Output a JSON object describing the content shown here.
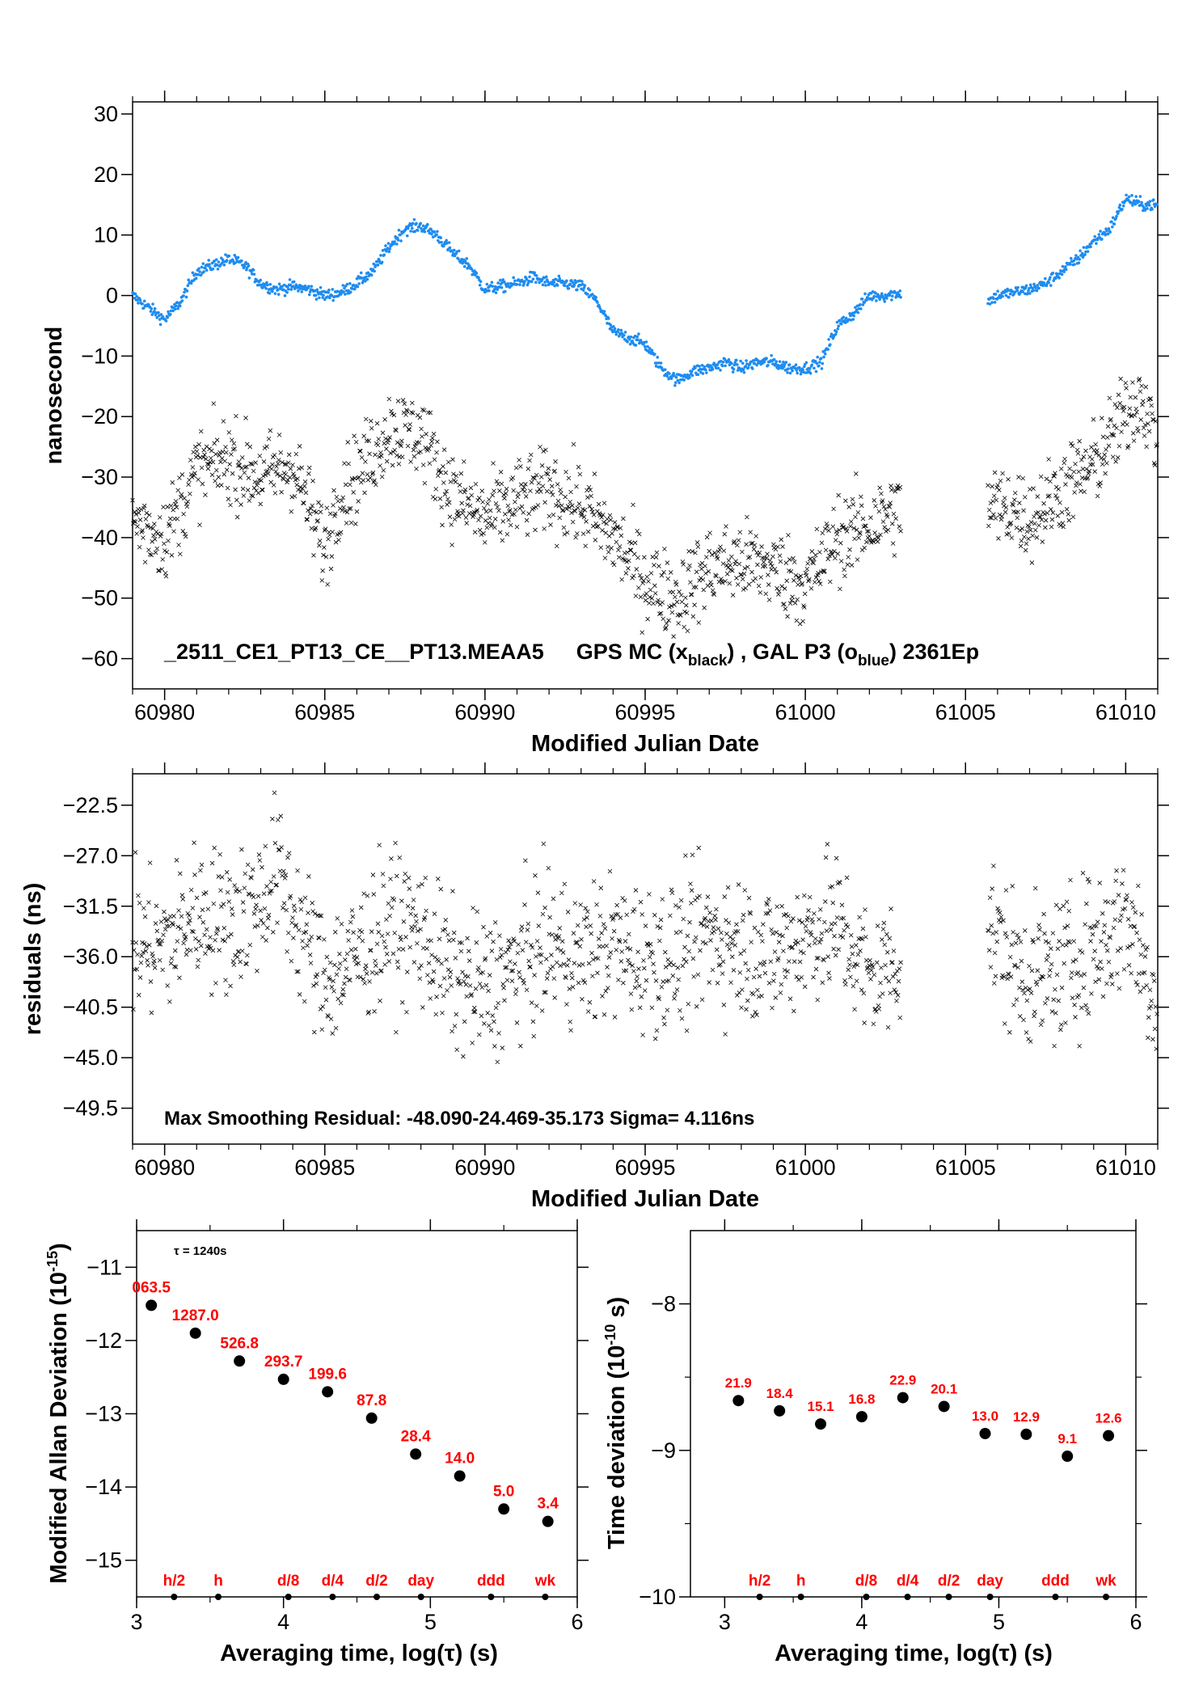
{
  "colors": {
    "blue_series": "#1e8cf0",
    "black_series": "#000000",
    "labels": "#ff0000"
  },
  "chart_data": [
    {
      "type": "scatter",
      "xlabel": "Modified Julian Date",
      "ylabel": "nanosecond",
      "xlim": [
        60979,
        61011
      ],
      "ylim": [
        -65,
        32
      ],
      "xticks": [
        60980,
        60985,
        60990,
        60995,
        61000,
        61005,
        61010
      ],
      "yticks": [
        30,
        20,
        10,
        0,
        -10,
        -20,
        -30,
        -40,
        -50,
        -60
      ],
      "annotation": {
        "station": "_2511_CE1_PT13_CE__PT13.MEAA5",
        "gps": "GPS MC (x",
        "gps_sub": "black",
        "sep": ") ,  GAL P3 (o",
        "gal_sub": "blue",
        "tail": ")  2361Ep"
      },
      "series": [
        {
          "marker": "o",
          "color": "#1e8cf0",
          "trend": [
            [
              60979,
              0
            ],
            [
              60979.5,
              -2
            ],
            [
              60980,
              -4
            ],
            [
              60980.5,
              -1
            ],
            [
              60981,
              4
            ],
            [
              60981.5,
              5
            ],
            [
              60982,
              6
            ],
            [
              60982.5,
              5
            ],
            [
              60983,
              2
            ],
            [
              60983.5,
              1
            ],
            [
              60984,
              1.5
            ],
            [
              60984.5,
              1
            ],
            [
              60985,
              0
            ],
            [
              60985.5,
              0.5
            ],
            [
              60986,
              2
            ],
            [
              60986.5,
              4
            ],
            [
              60987,
              8
            ],
            [
              60987.5,
              11
            ],
            [
              60988,
              11.5
            ],
            [
              60988.5,
              10
            ],
            [
              60989,
              7
            ],
            [
              60989.5,
              5
            ],
            [
              60990,
              1
            ],
            [
              60990.5,
              1.5
            ],
            [
              60991,
              2
            ],
            [
              60991.5,
              3
            ],
            [
              60992,
              2
            ],
            [
              60992.5,
              2
            ],
            [
              60993,
              1.5
            ],
            [
              60993.5,
              -1
            ],
            [
              60994,
              -6
            ],
            [
              60994.5,
              -7
            ],
            [
              60995,
              -8
            ],
            [
              60995.5,
              -12
            ],
            [
              60996,
              -14
            ],
            [
              60996.5,
              -12.5
            ],
            [
              60997,
              -12
            ],
            [
              60997.5,
              -11
            ],
            [
              60998,
              -12
            ],
            [
              60998.5,
              -11
            ],
            [
              60999,
              -11
            ],
            [
              60999.5,
              -12
            ],
            [
              61000,
              -12
            ],
            [
              61000.5,
              -11
            ],
            [
              61001,
              -5
            ],
            [
              61001.5,
              -3
            ],
            [
              61002,
              0
            ],
            [
              61002.5,
              0
            ],
            [
              61003,
              0.5
            ]
          ],
          "trend2": [
            [
              61005.7,
              -1
            ],
            [
              61006,
              0
            ],
            [
              61006.5,
              0.5
            ],
            [
              61007,
              1
            ],
            [
              61007.5,
              2
            ],
            [
              61008,
              4
            ],
            [
              61008.5,
              6
            ],
            [
              61009,
              9
            ],
            [
              61009.5,
              11
            ],
            [
              61010,
              16
            ],
            [
              61010.5,
              15
            ],
            [
              61011,
              15
            ]
          ]
        },
        {
          "marker": "x",
          "color": "#000000",
          "trend": [
            [
              60979,
              -37
            ],
            [
              60980,
              -40
            ],
            [
              60980.5,
              -35
            ],
            [
              60981,
              -29
            ],
            [
              60982,
              -27
            ],
            [
              60983,
              -30
            ],
            [
              60984,
              -28
            ],
            [
              60984.5,
              -35
            ],
            [
              60985,
              -42
            ],
            [
              60985.5,
              -32
            ],
            [
              60986,
              -30
            ],
            [
              60987,
              -22
            ],
            [
              60988,
              -23
            ],
            [
              60989,
              -33
            ],
            [
              60990,
              -37
            ],
            [
              60991,
              -34
            ],
            [
              60992,
              -32
            ],
            [
              60993,
              -35
            ],
            [
              60994,
              -40
            ],
            [
              60995,
              -47
            ],
            [
              60996,
              -50
            ],
            [
              60997,
              -45
            ],
            [
              60998,
              -44
            ],
            [
              60999,
              -45
            ],
            [
              61000,
              -48
            ],
            [
              61001,
              -40
            ],
            [
              61002,
              -38
            ],
            [
              61003,
              -35
            ]
          ],
          "trend2": [
            [
              61005.7,
              -35
            ],
            [
              61006.5,
              -35
            ],
            [
              61007,
              -37
            ],
            [
              61008,
              -32
            ],
            [
              61009,
              -28
            ],
            [
              61010,
              -20
            ],
            [
              61010.5,
              -16
            ],
            [
              61011,
              -25
            ]
          ]
        }
      ]
    },
    {
      "type": "scatter",
      "xlabel": "Modified Julian Date",
      "ylabel": "residuals (ns)",
      "xlim": [
        60979,
        61011
      ],
      "ylim": [
        -52.7,
        -19.7
      ],
      "xticks": [
        60980,
        60985,
        60990,
        60995,
        61000,
        61005,
        61010
      ],
      "yticks": [
        -22.5,
        -27.0,
        -31.5,
        -36.0,
        -40.5,
        -45.0,
        -49.5
      ],
      "ytick_labels": [
        "-22.5",
        "-27.0",
        "-31.5",
        "-36.0",
        "-40.5",
        "-45.0",
        "-49.5"
      ],
      "annotation": "Max Smoothing Residual: -48.090-24.469-35.173  Sigma= 4.116ns",
      "series": [
        {
          "marker": "x",
          "color": "#000000",
          "trend": [
            [
              60979,
              -35
            ],
            [
              60980,
              -35
            ],
            [
              60981,
              -32
            ],
            [
              60982,
              -33
            ],
            [
              60983,
              -31
            ],
            [
              60983.5,
              -28
            ],
            [
              60984,
              -32
            ],
            [
              60985,
              -38
            ],
            [
              60986,
              -36
            ],
            [
              60987,
              -33
            ],
            [
              60988,
              -34
            ],
            [
              60989,
              -38
            ],
            [
              60990,
              -39
            ],
            [
              60991,
              -37
            ],
            [
              60992,
              -35
            ],
            [
              60993,
              -36
            ],
            [
              60994,
              -35
            ],
            [
              60995,
              -36
            ],
            [
              60996,
              -36
            ],
            [
              60997,
              -34
            ],
            [
              60998,
              -35
            ],
            [
              60999,
              -36
            ],
            [
              61000,
              -34
            ],
            [
              61001,
              -33
            ],
            [
              61002,
              -38
            ],
            [
              61003,
              -36
            ]
          ],
          "trend2": [
            [
              61005.7,
              -33
            ],
            [
              61006.5,
              -37
            ],
            [
              61007.5,
              -38
            ],
            [
              61008.5,
              -36
            ],
            [
              61009.5,
              -34
            ],
            [
              61010,
              -32
            ],
            [
              61011,
              -40
            ]
          ]
        }
      ]
    },
    {
      "type": "scatter",
      "xlabel": "Averaging time, log(τ) (s)",
      "ylabel": "Modified Allan Deviation (10",
      "ylabel_sup": "-15",
      "ylabel_tail": ")",
      "xlim": [
        3,
        6
      ],
      "ylim": [
        -15.5,
        -10.5
      ],
      "xticks": [
        3,
        4,
        5,
        6
      ],
      "yticks": [
        -11,
        -12,
        -13,
        -14,
        -15
      ],
      "tau_note": "τ = 1240s",
      "x": [
        3.1,
        3.4,
        3.7,
        4.0,
        4.3,
        4.6,
        4.9,
        5.2,
        5.5,
        5.8
      ],
      "y": [
        -11.52,
        -11.9,
        -12.28,
        -12.53,
        -12.7,
        -13.06,
        -13.55,
        -13.85,
        -14.3,
        -14.47
      ],
      "labels": [
        "063.5",
        "1287.0",
        "526.8",
        "293.7",
        "199.6",
        "87.8",
        "28.4",
        "14.0",
        "5.0",
        "3.4"
      ],
      "markers": [
        {
          "x": 3.255,
          "label": "h/2"
        },
        {
          "x": 3.556,
          "label": "h"
        },
        {
          "x": 4.033,
          "label": "d/8"
        },
        {
          "x": 4.334,
          "label": "d/4"
        },
        {
          "x": 4.635,
          "label": "d/2"
        },
        {
          "x": 4.936,
          "label": "day"
        },
        {
          "x": 5.413,
          "label": "ddd"
        },
        {
          "x": 5.782,
          "label": "wk"
        }
      ]
    },
    {
      "type": "scatter",
      "xlabel": "Averaging time, log(τ) (s)",
      "ylabel": "Time deviation (10",
      "ylabel_sup": "-10",
      "ylabel_tail": " s)",
      "xlim": [
        2.75,
        6
      ],
      "ylim": [
        -10,
        -7.5
      ],
      "xticks": [
        3,
        4,
        5,
        6
      ],
      "yticks": [
        -8,
        -9,
        -10
      ],
      "x": [
        3.1,
        3.4,
        3.7,
        4.0,
        4.3,
        4.6,
        4.9,
        5.2,
        5.5,
        5.8
      ],
      "y": [
        -8.66,
        -8.73,
        -8.82,
        -8.77,
        -8.64,
        -8.7,
        -8.885,
        -8.89,
        -9.04,
        -8.9
      ],
      "labels": [
        "21.9",
        "18.4",
        "15.1",
        "16.8",
        "22.9",
        "20.1",
        "13.0",
        "12.9",
        "9.1",
        "12.6"
      ],
      "markers": [
        {
          "x": 3.255,
          "label": "h/2"
        },
        {
          "x": 3.556,
          "label": "h"
        },
        {
          "x": 4.033,
          "label": "d/8"
        },
        {
          "x": 4.334,
          "label": "d/4"
        },
        {
          "x": 4.635,
          "label": "d/2"
        },
        {
          "x": 4.936,
          "label": "day"
        },
        {
          "x": 5.413,
          "label": "ddd"
        },
        {
          "x": 5.782,
          "label": "wk"
        }
      ]
    }
  ]
}
